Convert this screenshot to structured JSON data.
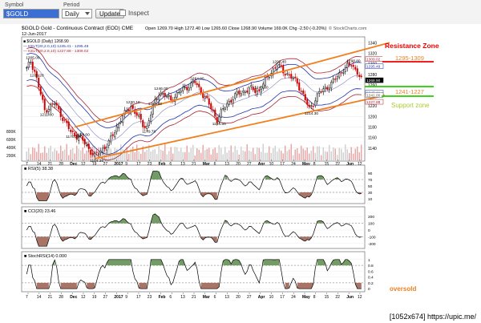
{
  "toolbar": {
    "symbol_label": "Symbol",
    "symbol_value": "$GOLD",
    "period_label": "Period",
    "period_value": "Daily",
    "update_label": "Update",
    "inspect_label": "Inspect"
  },
  "header": {
    "symbol_line": "$GOLD Gold - Continuous Contract (EOD) CME",
    "date": "12-Jun-2017",
    "stockcharts": "© StockCharts.com",
    "ohlc": "Open 1269.70  High 1272.40  Low 1265.60  Close 1268.90  Volume 169.0K  Chg -2.50 (-0.20%)",
    "legend_price": "■ $GOLD (Daily) 1268.90",
    "legend_kelt1": "— KELT(20,2.0,10) 1245.41 - 1295.49",
    "legend_kelt2": "— KELT(20,2.8,10) 1227.88 - 1309.02"
  },
  "annotations": {
    "resistance_title": "Resistance Zone",
    "resistance_range": "1295-1309",
    "support_range": "1241-1227",
    "support_title": "Support zone",
    "oversold": "oversold"
  },
  "panels": {
    "rsi_label": "■ RSI(5) 38.38",
    "cci_label": "■ CCI(20) 23.46",
    "stoch_label": "■ StochRSI(14) 0.000"
  },
  "watermark": "[1052x674] https://upic.me/",
  "colors": {
    "up_candle": "#000000",
    "down_candle": "#cc0000",
    "kelt_inner": "#2233aa",
    "kelt_outer": "#aa2233",
    "channel": "#f07f1e",
    "resistance": "#ee0000",
    "support": "#22cc00",
    "indicator_high": "#5a8a4a",
    "indicator_low": "#9a5a4a"
  },
  "chart_data": [
    {
      "type": "candlestick",
      "title": "$GOLD Gold - Continuous Contract (EOD) CME",
      "x_ticks": [
        "7",
        "14",
        "21",
        "28",
        "Dec",
        "12",
        "19",
        "27",
        "2017",
        "9",
        "17",
        "23",
        "Feb",
        "6",
        "13",
        "21",
        "Mar",
        "6",
        "13",
        "20",
        "27",
        "Apr",
        "10",
        "17",
        "24",
        "May",
        "8",
        "15",
        "22",
        "Jun",
        "12"
      ],
      "y_ticks": [
        1140,
        1160,
        1180,
        1200,
        1220,
        1240,
        1260,
        1280,
        1300,
        1320,
        1340
      ],
      "ylim": [
        1120,
        1345
      ],
      "price_labels": [
        {
          "date": "2016-11-04",
          "value": 1305.0
        },
        {
          "date": "2016-11-08",
          "value": 1286.2
        },
        {
          "date": "2016-11-14",
          "value": 1211.8
        },
        {
          "date": "2016-11-28",
          "value": 1170.3
        },
        {
          "date": "2016-12-05",
          "value": 1158.6
        },
        {
          "date": "2016-12-15",
          "value": 1124.3
        },
        {
          "date": "2017-01-10",
          "value": 1220.1
        },
        {
          "date": "2017-01-24",
          "value": 1179.7
        },
        {
          "date": "2017-01-26",
          "value": 1217.5
        },
        {
          "date": "2017-01-31",
          "value": 1246.0
        },
        {
          "date": "2017-02-27",
          "value": 1264.9
        },
        {
          "date": "2017-03-09",
          "value": 1194.5
        },
        {
          "date": "2017-04-05",
          "value": 1248.2
        },
        {
          "date": "2017-04-17",
          "value": 1297.4
        },
        {
          "date": "2017-05-09",
          "value": 1214.3
        },
        {
          "date": "2017-06-06",
          "value": 1298.8
        }
      ],
      "axis_price_tags": [
        1309.02,
        1295.49,
        1268.9,
        1245.41,
        1241.0,
        1227.88
      ],
      "volume_ticks": [
        "200K",
        "400K",
        "600K",
        "800K"
      ],
      "latest": {
        "open": 1269.7,
        "high": 1272.4,
        "low": 1265.6,
        "close": 1268.9,
        "volume": "169.0K",
        "change": "-2.50 (-0.20%)"
      },
      "series": [
        {
          "name": "KELT(20,2.0,10)",
          "values": [
            1245.41,
            1295.49
          ]
        },
        {
          "name": "KELT(20,2.8,10)",
          "values": [
            1227.88,
            1309.02
          ]
        }
      ]
    },
    {
      "type": "line",
      "title": "RSI(5) 38.38",
      "y_ticks": [
        10,
        30,
        50,
        70,
        90
      ],
      "ylim": [
        0,
        100
      ],
      "last_value": 38.38
    },
    {
      "type": "line",
      "title": "CCI(20) 23.46",
      "y_ticks": [
        -200,
        -100,
        0,
        100,
        200
      ],
      "ylim": [
        -250,
        250
      ],
      "last_value": 23.46
    },
    {
      "type": "line",
      "title": "StochRSI(14) 0.000",
      "y_ticks": [
        0.0,
        0.2,
        0.4,
        0.6,
        0.8,
        1.0
      ],
      "ylim": [
        -0.05,
        1.05
      ],
      "last_value": 0.0
    }
  ]
}
